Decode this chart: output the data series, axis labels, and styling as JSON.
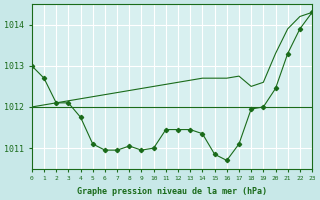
{
  "title": "Graphe pression niveau de la mer (hPa)",
  "bg_color": "#c8e8e8",
  "plot_bg_color": "#d8f0f0",
  "grid_color": "#ffffff",
  "line_color": "#1a6b1a",
  "xlim": [
    0,
    23
  ],
  "ylim": [
    1010.5,
    1014.5
  ],
  "yticks": [
    1011,
    1012,
    1013,
    1014
  ],
  "xticks": [
    0,
    1,
    2,
    3,
    4,
    5,
    6,
    7,
    8,
    9,
    10,
    11,
    12,
    13,
    14,
    15,
    16,
    17,
    18,
    19,
    20,
    21,
    22,
    23
  ],
  "series1_x": [
    0,
    1,
    2,
    3,
    4,
    5,
    6,
    7,
    8,
    9,
    10,
    11,
    12,
    13,
    14,
    15,
    16,
    17,
    18,
    19,
    20,
    21,
    22,
    23
  ],
  "series1_y": [
    1013.0,
    1012.7,
    1012.1,
    1012.1,
    1011.75,
    1011.1,
    1010.95,
    1010.95,
    1011.05,
    1010.95,
    1011.0,
    1011.45,
    1011.45,
    1011.45,
    1011.35,
    1010.85,
    1010.7,
    1011.1,
    1011.95,
    1012.0,
    1012.45,
    1013.3,
    1013.9,
    1014.3
  ],
  "series2_x": [
    0,
    1,
    2,
    3,
    4,
    5,
    6,
    7,
    8,
    9,
    10,
    11,
    12,
    13,
    14,
    15,
    16,
    17,
    18,
    19,
    20,
    21,
    22,
    23
  ],
  "series2_y": [
    1012.0,
    1012.0,
    1012.0,
    1012.0,
    1012.0,
    1012.0,
    1012.0,
    1012.0,
    1012.0,
    1012.0,
    1012.0,
    1012.0,
    1012.0,
    1012.0,
    1012.0,
    1012.0,
    1012.0,
    1012.0,
    1012.0,
    1012.0,
    1012.0,
    1012.0,
    1012.0,
    1012.0
  ],
  "series3_x": [
    0,
    1,
    2,
    3,
    4,
    5,
    6,
    7,
    8,
    9,
    10,
    11,
    12,
    13,
    14,
    15,
    16,
    17,
    18,
    19,
    20,
    21,
    22,
    23
  ],
  "series3_y": [
    1012.0,
    1012.05,
    1012.1,
    1012.15,
    1012.2,
    1012.25,
    1012.3,
    1012.35,
    1012.4,
    1012.45,
    1012.5,
    1012.55,
    1012.6,
    1012.65,
    1012.7,
    1012.7,
    1012.7,
    1012.75,
    1012.5,
    1012.6,
    1013.3,
    1013.9,
    1014.2,
    1014.3
  ]
}
